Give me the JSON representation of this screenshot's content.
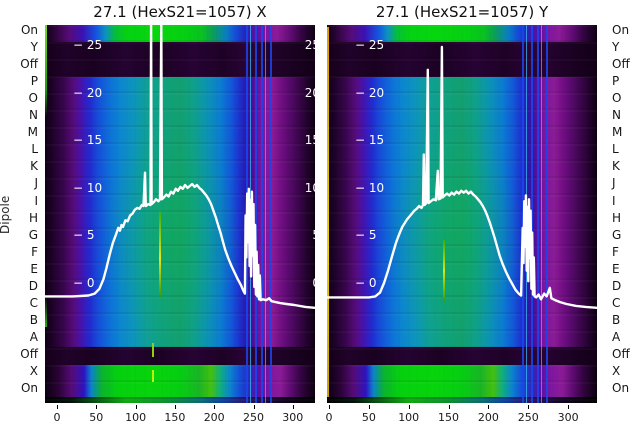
{
  "figure": {
    "background": "#ffffff",
    "ylabel": "Dipole",
    "row_labels": [
      "On",
      "Y",
      "Off",
      "P",
      "O",
      "N",
      "M",
      "L",
      "K",
      "J",
      "I",
      "H",
      "G",
      "F",
      "E",
      "D",
      "C",
      "B",
      "A",
      "Off",
      "X",
      "On"
    ],
    "panels": [
      {
        "title": "27.1 (HexS21=1057) X",
        "yticks_left": [
          "− 25",
          "− 20",
          "− 15",
          "− 10",
          "− 5",
          "− 0"
        ],
        "yticks_right": [
          "25",
          "20",
          "15",
          "10",
          "5",
          "0"
        ],
        "xticks": [
          "0",
          "50",
          "100",
          "150",
          "200",
          "250",
          "300"
        ]
      },
      {
        "title": "27.1 (HexS21=1057) Y",
        "yticks_left": [
          "− 25",
          "− 20",
          "− 15",
          "− 10",
          "− 5",
          "− 0"
        ],
        "yticks_right": [],
        "xticks": [
          "0",
          "50",
          "100",
          "150",
          "200",
          "250",
          "300"
        ]
      }
    ]
  },
  "palette": {
    "curve": "#ffffff",
    "bright_green": "#05d00e",
    "teal": "#10a17d",
    "blue": "#1650d8",
    "cyan_blue": "#0c86cf",
    "purple": "#8c1b97",
    "dark_purple": "#1c0123",
    "yellow_edge": "#f0d000",
    "yellow_green_line": "#c8e016",
    "background_dark": "#0d0011"
  },
  "chart_data": [
    {
      "type": "heatmap",
      "title": "27.1 (HexS21=1057) X",
      "row_axis_label": "Dipole",
      "row_labels": [
        "On",
        "Y",
        "Off",
        "P",
        "O",
        "N",
        "M",
        "L",
        "K",
        "J",
        "I",
        "H",
        "G",
        "F",
        "E",
        "D",
        "C",
        "B",
        "A",
        "Off",
        "X",
        "On"
      ],
      "x_axis_ticks": [
        0,
        50,
        100,
        150,
        200,
        250,
        300
      ],
      "x_range": [
        -15,
        328
      ],
      "inner_scale_ticks_left": [
        -25,
        -20,
        -15,
        -10,
        -5,
        0
      ],
      "inner_scale_ticks_right": [
        25,
        20,
        15,
        10,
        5,
        0
      ],
      "colormap_hint": "black-purple-blue-teal-green, bright green bands on first and last rows, dark bands on Y/Off rows, blue line cluster near x=250, yellow-green vertical streak near x=150",
      "line_series": {
        "name": "white-line",
        "points": [
          [
            -15,
            -1.2
          ],
          [
            20,
            -1.2
          ],
          [
            40,
            -1.1
          ],
          [
            48,
            -0.9
          ],
          [
            54,
            -0.4
          ],
          [
            59,
            0.6
          ],
          [
            63,
            1.8
          ],
          [
            67,
            3.2
          ],
          [
            71,
            4.4
          ],
          [
            75,
            5.3
          ],
          [
            78,
            6.0
          ],
          [
            80,
            5.7
          ],
          [
            82,
            6.3
          ],
          [
            84,
            6.1
          ],
          [
            87,
            6.8
          ],
          [
            90,
            6.7
          ],
          [
            93,
            7.3
          ],
          [
            96,
            7.5
          ],
          [
            99,
            7.9
          ],
          [
            102,
            8.1
          ],
          [
            105,
            8.0
          ],
          [
            108,
            8.4
          ],
          [
            110,
            8.3
          ],
          [
            112,
            11.8
          ],
          [
            113,
            8.3
          ],
          [
            116,
            8.5
          ],
          [
            119,
            8.4
          ],
          [
            119.7,
            27.8
          ],
          [
            120.4,
            8.5
          ],
          [
            123,
            8.7
          ],
          [
            126,
            9.0
          ],
          [
            129,
            8.8
          ],
          [
            131,
            9.0
          ],
          [
            132.7,
            27.6
          ],
          [
            133.4,
            9.0
          ],
          [
            136,
            9.2
          ],
          [
            139,
            9.5
          ],
          [
            142,
            9.3
          ],
          [
            145,
            9.8
          ],
          [
            148,
            9.6
          ],
          [
            151,
            10.1
          ],
          [
            154,
            9.9
          ],
          [
            157,
            10.3
          ],
          [
            160,
            10.1
          ],
          [
            163,
            10.5
          ],
          [
            166,
            10.2
          ],
          [
            169,
            10.4
          ],
          [
            172,
            10.6
          ],
          [
            175,
            10.3
          ],
          [
            178,
            10.5
          ],
          [
            181,
            10.2
          ],
          [
            184,
            10.0
          ],
          [
            187,
            9.7
          ],
          [
            190,
            9.4
          ],
          [
            193,
            9.0
          ],
          [
            196,
            8.5
          ],
          [
            199,
            7.8
          ],
          [
            202,
            7.1
          ],
          [
            205,
            6.3
          ],
          [
            208,
            5.5
          ],
          [
            211,
            4.6
          ],
          [
            214,
            3.7
          ],
          [
            218,
            2.8
          ],
          [
            222,
            2.0
          ],
          [
            226,
            1.3
          ],
          [
            230,
            0.6
          ],
          [
            234,
            0.0
          ],
          [
            237,
            -0.6
          ],
          [
            239,
            -0.9
          ],
          [
            240,
            7.3
          ],
          [
            241,
            2.9
          ],
          [
            242,
            9.6
          ],
          [
            243,
            4.5
          ],
          [
            244,
            10.1
          ],
          [
            245,
            2.0
          ],
          [
            246,
            8.9
          ],
          [
            247,
            0.9
          ],
          [
            248,
            9.8
          ],
          [
            249,
            3.1
          ],
          [
            250,
            8.5
          ],
          [
            251,
            -0.2
          ],
          [
            252,
            6.3
          ],
          [
            253,
            -1.0
          ],
          [
            254,
            3.5
          ],
          [
            255,
            -1.2
          ],
          [
            256,
            2.1
          ],
          [
            257,
            -1.5
          ],
          [
            258,
            1.0
          ],
          [
            259,
            -1.6
          ],
          [
            262,
            -1.5
          ],
          [
            266,
            -1.6
          ],
          [
            270,
            -1.4
          ],
          [
            273,
            -1.7
          ],
          [
            278,
            -1.8
          ],
          [
            284,
            -1.9
          ],
          [
            292,
            -2.0
          ],
          [
            302,
            -2.1
          ],
          [
            316,
            -2.3
          ],
          [
            328,
            -2.4
          ]
        ]
      }
    },
    {
      "type": "heatmap",
      "title": "27.1 (HexS21=1057) Y",
      "row_axis_label": "Dipole",
      "row_labels": [
        "On",
        "Y",
        "Off",
        "P",
        "O",
        "N",
        "M",
        "L",
        "K",
        "J",
        "I",
        "H",
        "G",
        "F",
        "E",
        "D",
        "C",
        "B",
        "A",
        "Off",
        "X",
        "On"
      ],
      "x_axis_ticks": [
        0,
        50,
        100,
        150,
        200,
        250,
        300
      ],
      "x_range": [
        -2,
        336
      ],
      "inner_scale_ticks_left": [
        -25,
        -20,
        -15,
        -10,
        -5,
        0
      ],
      "inner_scale_ticks_right": [],
      "colormap_hint": "same colormap as panel X, yellow vertical streak at left edge, blue line cluster near x=280",
      "line_series": {
        "name": "white-line",
        "points": [
          [
            -2,
            -1.3
          ],
          [
            30,
            -1.3
          ],
          [
            50,
            -1.3
          ],
          [
            58,
            -1.2
          ],
          [
            64,
            -0.8
          ],
          [
            69,
            0.2
          ],
          [
            74,
            1.5
          ],
          [
            79,
            3.0
          ],
          [
            84,
            4.4
          ],
          [
            88,
            5.3
          ],
          [
            92,
            6.1
          ],
          [
            95,
            6.5
          ],
          [
            98,
            6.9
          ],
          [
            101,
            7.2
          ],
          [
            104,
            7.5
          ],
          [
            107,
            7.8
          ],
          [
            110,
            8.0
          ],
          [
            113,
            8.3
          ],
          [
            116,
            8.1
          ],
          [
            118,
            8.4
          ],
          [
            119,
            13.7
          ],
          [
            120,
            8.4
          ],
          [
            122,
            8.6
          ],
          [
            124,
            22.6
          ],
          [
            125,
            8.6
          ],
          [
            128,
            8.8
          ],
          [
            131,
            9.0
          ],
          [
            134,
            8.9
          ],
          [
            136.5,
            12.0
          ],
          [
            137.5,
            9.0
          ],
          [
            140,
            9.1
          ],
          [
            141.6,
            25.0
          ],
          [
            142.6,
            9.2
          ],
          [
            145,
            9.4
          ],
          [
            148,
            9.6
          ],
          [
            151,
            9.4
          ],
          [
            154,
            9.7
          ],
          [
            157,
            9.5
          ],
          [
            160,
            9.8
          ],
          [
            163,
            9.6
          ],
          [
            166,
            9.9
          ],
          [
            169,
            9.7
          ],
          [
            172,
            9.9
          ],
          [
            175,
            9.6
          ],
          [
            178,
            9.8
          ],
          [
            181,
            9.5
          ],
          [
            184,
            9.3
          ],
          [
            187,
            9.0
          ],
          [
            190,
            8.7
          ],
          [
            193,
            8.3
          ],
          [
            196,
            7.8
          ],
          [
            199,
            7.2
          ],
          [
            202,
            6.5
          ],
          [
            205,
            5.7
          ],
          [
            208,
            4.9
          ],
          [
            211,
            4.0
          ],
          [
            214,
            3.1
          ],
          [
            218,
            2.2
          ],
          [
            222,
            1.4
          ],
          [
            226,
            0.7
          ],
          [
            230,
            0.1
          ],
          [
            234,
            -0.5
          ],
          [
            238,
            -0.9
          ],
          [
            241,
            -1.1
          ],
          [
            243,
            6.0
          ],
          [
            244,
            2.3
          ],
          [
            245,
            8.8
          ],
          [
            246,
            4.0
          ],
          [
            247,
            9.4
          ],
          [
            248,
            1.5
          ],
          [
            249,
            8.2
          ],
          [
            250,
            0.4
          ],
          [
            251,
            9.0
          ],
          [
            252,
            2.8
          ],
          [
            253,
            7.8
          ],
          [
            254,
            -0.4
          ],
          [
            255,
            5.5
          ],
          [
            256,
            -1.0
          ],
          [
            257,
            2.9
          ],
          [
            258,
            -1.2
          ],
          [
            260,
            -1.3
          ],
          [
            263,
            -1.0
          ],
          [
            266,
            -1.5
          ],
          [
            270,
            -0.9
          ],
          [
            273,
            -1.2
          ],
          [
            277,
            -0.3
          ],
          [
            279,
            -1.4
          ],
          [
            284,
            -1.6
          ],
          [
            290,
            -1.8
          ],
          [
            298,
            -2.0
          ],
          [
            310,
            -2.2
          ],
          [
            322,
            -2.3
          ],
          [
            336,
            -2.4
          ]
        ]
      }
    }
  ]
}
